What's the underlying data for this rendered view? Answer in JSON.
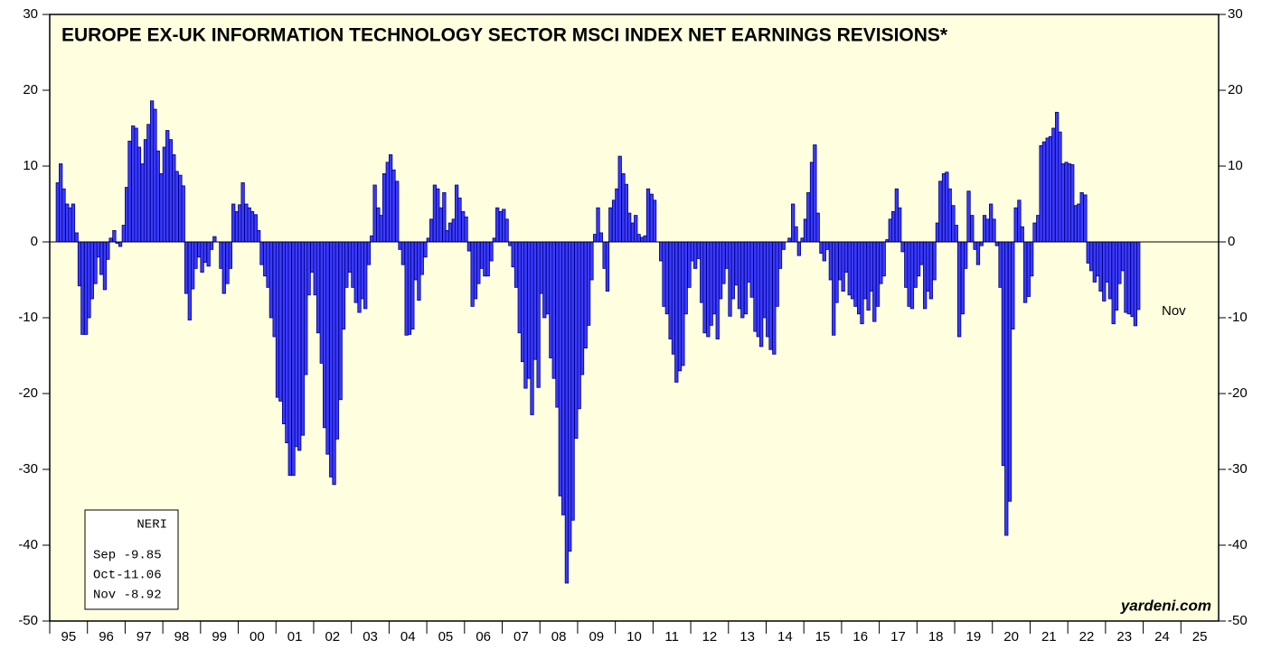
{
  "chart_data": {
    "type": "bar",
    "title": "EUROPE EX-UK INFORMATION TECHNOLOGY SECTOR MSCI INDEX NET EARNINGS REVISIONS*",
    "annotation": "Nov",
    "source": "yardeni.com",
    "legend_box": [
      "NERI",
      "Sep -9.85",
      "Oct-11.06",
      "Nov -8.92"
    ],
    "color": "#3b3bff",
    "edge_color": "#000080",
    "background": "#ffffe0",
    "ylim": [
      -50,
      30
    ],
    "yticks": [
      -50,
      -40,
      -30,
      -20,
      -10,
      0,
      10,
      20,
      30
    ],
    "xlim": [
      1995,
      2026
    ],
    "xticks": [
      {
        "value": 1995.5,
        "label": "95"
      },
      {
        "value": 1996.5,
        "label": "96"
      },
      {
        "value": 1997.5,
        "label": "97"
      },
      {
        "value": 1998.5,
        "label": "98"
      },
      {
        "value": 1999.5,
        "label": "99"
      },
      {
        "value": 2000.5,
        "label": "00"
      },
      {
        "value": 2001.5,
        "label": "01"
      },
      {
        "value": 2002.5,
        "label": "02"
      },
      {
        "value": 2003.5,
        "label": "03"
      },
      {
        "value": 2004.5,
        "label": "04"
      },
      {
        "value": 2005.5,
        "label": "05"
      },
      {
        "value": 2006.5,
        "label": "06"
      },
      {
        "value": 2007.5,
        "label": "07"
      },
      {
        "value": 2008.5,
        "label": "08"
      },
      {
        "value": 2009.5,
        "label": "09"
      },
      {
        "value": 2010.5,
        "label": "10"
      },
      {
        "value": 2011.5,
        "label": "11"
      },
      {
        "value": 2012.5,
        "label": "12"
      },
      {
        "value": 2013.5,
        "label": "13"
      },
      {
        "value": 2014.5,
        "label": "14"
      },
      {
        "value": 2015.5,
        "label": "15"
      },
      {
        "value": 2016.5,
        "label": "16"
      },
      {
        "value": 2017.5,
        "label": "17"
      },
      {
        "value": 2018.5,
        "label": "18"
      },
      {
        "value": 2019.5,
        "label": "19"
      },
      {
        "value": 2020.5,
        "label": "20"
      },
      {
        "value": 2021.5,
        "label": "21"
      },
      {
        "value": 2022.5,
        "label": "22"
      },
      {
        "value": 2023.5,
        "label": "23"
      },
      {
        "value": 2024.5,
        "label": "24"
      },
      {
        "value": 2025.5,
        "label": "25"
      }
    ],
    "x": [
      1995.17,
      1995.25,
      1995.33,
      1995.42,
      1995.5,
      1995.58,
      1995.67,
      1995.75,
      1995.83,
      1995.92,
      1996,
      1996.08,
      1996.17,
      1996.25,
      1996.33,
      1996.42,
      1996.5,
      1996.58,
      1996.67,
      1996.75,
      1996.83,
      1996.92,
      1997,
      1997.08,
      1997.17,
      1997.25,
      1997.33,
      1997.42,
      1997.5,
      1997.58,
      1997.67,
      1997.75,
      1997.83,
      1997.92,
      1998,
      1998.08,
      1998.17,
      1998.25,
      1998.33,
      1998.42,
      1998.5,
      1998.58,
      1998.67,
      1998.75,
      1998.83,
      1998.92,
      1999,
      1999.08,
      1999.17,
      1999.25,
      1999.33,
      1999.42,
      1999.5,
      1999.58,
      1999.67,
      1999.75,
      1999.83,
      1999.92,
      2000,
      2000.08,
      2000.17,
      2000.25,
      2000.33,
      2000.42,
      2000.5,
      2000.58,
      2000.67,
      2000.75,
      2000.83,
      2000.92,
      2001,
      2001.08,
      2001.17,
      2001.25,
      2001.33,
      2001.42,
      2001.5,
      2001.58,
      2001.67,
      2001.75,
      2001.83,
      2001.92,
      2002,
      2002.08,
      2002.17,
      2002.25,
      2002.33,
      2002.42,
      2002.5,
      2002.58,
      2002.67,
      2002.75,
      2002.83,
      2002.92,
      2003,
      2003.08,
      2003.17,
      2003.25,
      2003.33,
      2003.42,
      2003.5,
      2003.58,
      2003.67,
      2003.75,
      2003.83,
      2003.92,
      2004,
      2004.08,
      2004.17,
      2004.25,
      2004.33,
      2004.42,
      2004.5,
      2004.58,
      2004.67,
      2004.75,
      2004.83,
      2004.92,
      2005,
      2005.08,
      2005.17,
      2005.25,
      2005.33,
      2005.42,
      2005.5,
      2005.58,
      2005.67,
      2005.75,
      2005.83,
      2005.92,
      2006,
      2006.08,
      2006.17,
      2006.25,
      2006.33,
      2006.42,
      2006.5,
      2006.58,
      2006.67,
      2006.75,
      2006.83,
      2006.92,
      2007,
      2007.08,
      2007.17,
      2007.25,
      2007.33,
      2007.42,
      2007.5,
      2007.58,
      2007.67,
      2007.75,
      2007.83,
      2007.92,
      2008,
      2008.08,
      2008.17,
      2008.25,
      2008.33,
      2008.42,
      2008.5,
      2008.58,
      2008.67,
      2008.75,
      2008.83,
      2008.92,
      2009,
      2009.08,
      2009.17,
      2009.25,
      2009.33,
      2009.42,
      2009.5,
      2009.58,
      2009.67,
      2009.75,
      2009.83,
      2009.92,
      2010,
      2010.08,
      2010.17,
      2010.25,
      2010.33,
      2010.42,
      2010.5,
      2010.58,
      2010.67,
      2010.75,
      2010.83,
      2010.92,
      2011,
      2011.08,
      2011.17,
      2011.25,
      2011.33,
      2011.42,
      2011.5,
      2011.58,
      2011.67,
      2011.75,
      2011.83,
      2011.92,
      2012,
      2012.08,
      2012.17,
      2012.25,
      2012.33,
      2012.42,
      2012.5,
      2012.58,
      2012.67,
      2012.75,
      2012.83,
      2012.92,
      2013,
      2013.08,
      2013.17,
      2013.25,
      2013.33,
      2013.42,
      2013.5,
      2013.58,
      2013.67,
      2013.75,
      2013.83,
      2013.92,
      2014,
      2014.08,
      2014.17,
      2014.25,
      2014.33,
      2014.42,
      2014.5,
      2014.58,
      2014.67,
      2014.75,
      2014.83,
      2014.92,
      2015,
      2015.08,
      2015.17,
      2015.25,
      2015.33,
      2015.42,
      2015.5,
      2015.58,
      2015.67,
      2015.75,
      2015.83,
      2015.92,
      2016,
      2016.08,
      2016.17,
      2016.25,
      2016.33,
      2016.42,
      2016.5,
      2016.58,
      2016.67,
      2016.75,
      2016.83,
      2016.92,
      2017,
      2017.08,
      2017.17,
      2017.25,
      2017.33,
      2017.42,
      2017.5,
      2017.58,
      2017.67,
      2017.75,
      2017.83,
      2017.92,
      2018,
      2018.08,
      2018.17,
      2018.25,
      2018.33,
      2018.42,
      2018.5,
      2018.58,
      2018.67,
      2018.75,
      2018.83,
      2018.92,
      2019,
      2019.08,
      2019.17,
      2019.25,
      2019.33,
      2019.42,
      2019.5,
      2019.58,
      2019.67,
      2019.75,
      2019.83,
      2019.92,
      2020,
      2020.08,
      2020.17,
      2020.25,
      2020.33,
      2020.42,
      2020.5,
      2020.58,
      2020.67,
      2020.75,
      2020.83,
      2020.92,
      2021,
      2021.08,
      2021.17,
      2021.25,
      2021.33,
      2021.42,
      2021.5,
      2021.58,
      2021.67,
      2021.75,
      2021.83,
      2021.92,
      2022,
      2022.08,
      2022.17,
      2022.25,
      2022.33,
      2022.42,
      2022.5,
      2022.58,
      2022.67,
      2022.75,
      2022.83,
      2022.92,
      2023,
      2023.08,
      2023.17,
      2023.25,
      2023.33,
      2023.42,
      2023.5,
      2023.58,
      2023.67,
      2023.75,
      2023.83
    ],
    "values": [
      7.8,
      10.3,
      7,
      5,
      4.5,
      5,
      1.2,
      -5.8,
      -12.2,
      -12.2,
      -10,
      -7.5,
      -5.5,
      -2,
      -4.3,
      -6.3,
      -2.3,
      0.5,
      1.5,
      -0.2,
      -0.6,
      2.2,
      7.2,
      13.3,
      15.3,
      15,
      12.5,
      10.3,
      13.5,
      15.5,
      18.6,
      17.5,
      12,
      9,
      12.5,
      14.7,
      13.5,
      11.5,
      9.3,
      8.8,
      7.4,
      -6.8,
      -10.3,
      -6.2,
      -3.5,
      -2,
      -4,
      -2.7,
      -3.2,
      -1,
      0.7,
      0,
      -3.5,
      -6.8,
      -5.5,
      -3.5,
      5,
      4,
      4.9,
      7.8,
      5,
      4.5,
      4,
      3.6,
      1.5,
      -3,
      -4.5,
      -6,
      -10,
      -12.5,
      -20.5,
      -21,
      -24,
      -26.5,
      -30.8,
      -30.8,
      -27,
      -27.5,
      -25.5,
      -17.5,
      -7,
      -4,
      -7,
      -12,
      -16,
      -24.5,
      -28,
      -31,
      -32,
      -26,
      -20.8,
      -11.5,
      -6,
      -4,
      -6,
      -8,
      -9.3,
      -7.5,
      -8.8,
      -3,
      0.8,
      7.5,
      4.5,
      3.5,
      9,
      10.5,
      11.5,
      9.5,
      8,
      -1,
      -3,
      -12.3,
      -12.2,
      -11.5,
      -5,
      -7.7,
      -4.3,
      -2,
      0.5,
      3,
      7.5,
      7,
      4.5,
      6.5,
      1.5,
      2.5,
      3,
      7.5,
      5.8,
      4,
      3.3,
      -1.2,
      -8.5,
      -7.5,
      -5.5,
      -3.5,
      -4.5,
      -4.5,
      -2.5,
      0.5,
      4.5,
      4,
      4.3,
      3,
      -0.5,
      -3.3,
      -6,
      -12,
      -15.8,
      -19.3,
      -18,
      -22.8,
      -15.5,
      -19.2,
      -6.8,
      -10,
      -9.5,
      -15.3,
      -18,
      -21.8,
      -33.5,
      -36,
      -45,
      -40.8,
      -36.7,
      -25.9,
      -22,
      -17.5,
      -14,
      -11,
      -5,
      1,
      4.5,
      1.2,
      -3.5,
      -6.5,
      4.5,
      5.5,
      7,
      11.3,
      9,
      7.6,
      3.8,
      2.5,
      3.5,
      1,
      0.6,
      0.8,
      7,
      6.3,
      5.5,
      0,
      -2.5,
      -8.5,
      -9.5,
      -12.8,
      -14.8,
      -18.5,
      -17,
      -16.3,
      -9.5,
      -6,
      -2.5,
      -3.5,
      -2.2,
      -8,
      -12,
      -12.5,
      -11,
      -9.5,
      -12.8,
      -7.5,
      -5.5,
      -3.5,
      -9.8,
      -7.5,
      -5.7,
      -8.8,
      -10,
      -9.5,
      -5.3,
      -7.3,
      -11.8,
      -12.5,
      -13.8,
      -10,
      -12.5,
      -14.2,
      -14.8,
      -8.5,
      -3.5,
      -1,
      0,
      0.5,
      5,
      2,
      -1.8,
      0.5,
      3,
      6.5,
      10.5,
      12.8,
      3.8,
      -1.5,
      -2.5,
      -1,
      -5,
      -12.3,
      -8,
      -5,
      -6.5,
      -4,
      -7,
      -7.5,
      -8.5,
      -9.5,
      -10.8,
      -7.5,
      -9,
      -6.5,
      -10.5,
      -8.5,
      -5.5,
      -4.5,
      0.3,
      3,
      4,
      7,
      4.5,
      -1.3,
      -6,
      -8.5,
      -8.8,
      -6,
      -4.5,
      -3,
      -8.8,
      -6.5,
      -7.5,
      -5,
      2.5,
      8,
      9,
      9.2,
      7,
      4.8,
      2.2,
      -12.5,
      -9.5,
      -3.5,
      6.7,
      3.5,
      -1,
      -3,
      -0.5,
      3.5,
      3,
      5,
      3,
      -0.5,
      -6,
      -29.5,
      -38.7,
      -34.2,
      -11.5,
      4.5,
      5.5,
      2,
      -8,
      -7.2,
      -4.5,
      2.5,
      3.5,
      12.7,
      13.2,
      13.7,
      13.9,
      15,
      17.1,
      14.5,
      10.3,
      10.5,
      10.3,
      10.2,
      4.8,
      5,
      6.5,
      6.2,
      -2.8,
      -3.8,
      -5.3,
      -4.5,
      -6.5,
      -7.8,
      -5.3,
      -7.5,
      -10.8,
      -9,
      -5.5,
      -3.8,
      -9.3,
      -9.5,
      -9.85,
      -11.06,
      -8.92
    ]
  }
}
